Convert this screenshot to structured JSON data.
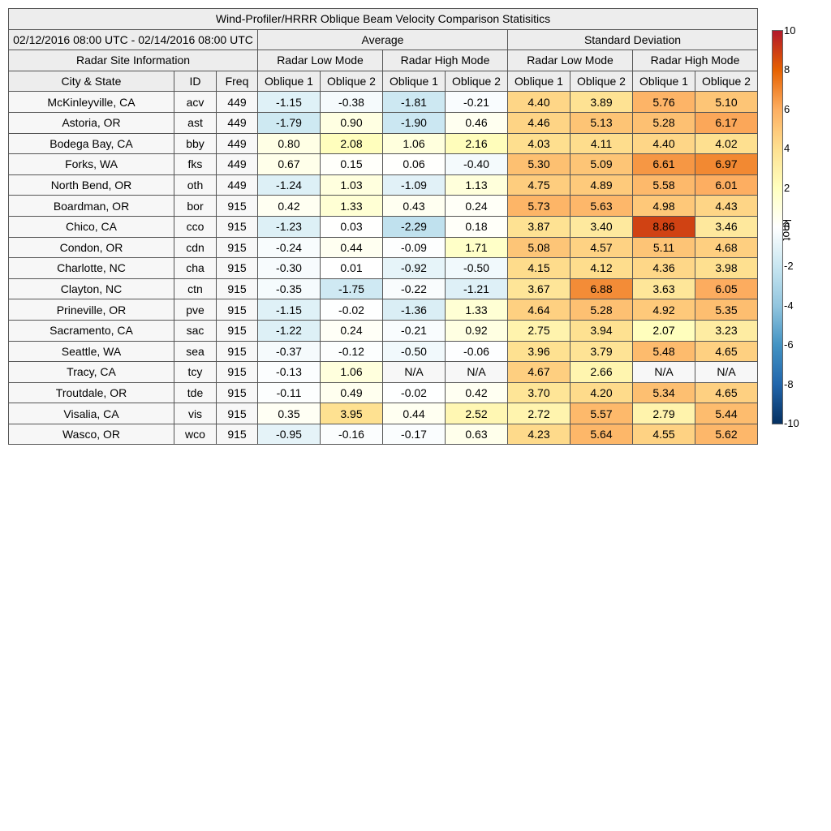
{
  "chart_data": {
    "type": "table",
    "title": "Wind-Profiler/HRRR Oblique Beam Velocity Comparison Statisitics",
    "period": "02/12/2016 08:00 UTC - 02/14/2016 08:00 UTC",
    "groups": [
      "Average",
      "Standard Deviation"
    ],
    "site_info_label": "Radar Site Information",
    "modes": [
      "Radar Low Mode",
      "Radar High Mode",
      "Radar Low Mode",
      "Radar High Mode"
    ],
    "info_columns": [
      "City & State",
      "ID",
      "Freq"
    ],
    "beam_columns": [
      "Oblique 1",
      "Oblique 2",
      "Oblique 1",
      "Oblique 2",
      "Oblique 1",
      "Oblique 2",
      "Oblique 1",
      "Oblique 2"
    ],
    "rows": [
      {
        "city": "McKinleyville, CA",
        "id": "acv",
        "freq": "449",
        "values": [
          "-1.15",
          "-0.38",
          "-1.81",
          "-0.21",
          "4.40",
          "3.89",
          "5.76",
          "5.10"
        ]
      },
      {
        "city": "Astoria, OR",
        "id": "ast",
        "freq": "449",
        "values": [
          "-1.79",
          "0.90",
          "-1.90",
          "0.46",
          "4.46",
          "5.13",
          "5.28",
          "6.17"
        ]
      },
      {
        "city": "Bodega Bay, CA",
        "id": "bby",
        "freq": "449",
        "values": [
          "0.80",
          "2.08",
          "1.06",
          "2.16",
          "4.03",
          "4.11",
          "4.40",
          "4.02"
        ]
      },
      {
        "city": "Forks, WA",
        "id": "fks",
        "freq": "449",
        "values": [
          "0.67",
          "0.15",
          "0.06",
          "-0.40",
          "5.30",
          "5.09",
          "6.61",
          "6.97"
        ]
      },
      {
        "city": "North Bend, OR",
        "id": "oth",
        "freq": "449",
        "values": [
          "-1.24",
          "1.03",
          "-1.09",
          "1.13",
          "4.75",
          "4.89",
          "5.58",
          "6.01"
        ]
      },
      {
        "city": "Boardman, OR",
        "id": "bor",
        "freq": "915",
        "values": [
          "0.42",
          "1.33",
          "0.43",
          "0.24",
          "5.73",
          "5.63",
          "4.98",
          "4.43"
        ]
      },
      {
        "city": "Chico, CA",
        "id": "cco",
        "freq": "915",
        "values": [
          "-1.23",
          "0.03",
          "-2.29",
          "0.18",
          "3.87",
          "3.40",
          "8.86",
          "3.46"
        ]
      },
      {
        "city": "Condon, OR",
        "id": "cdn",
        "freq": "915",
        "values": [
          "-0.24",
          "0.44",
          "-0.09",
          "1.71",
          "5.08",
          "4.57",
          "5.11",
          "4.68"
        ]
      },
      {
        "city": "Charlotte, NC",
        "id": "cha",
        "freq": "915",
        "values": [
          "-0.30",
          "0.01",
          "-0.92",
          "-0.50",
          "4.15",
          "4.12",
          "4.36",
          "3.98"
        ]
      },
      {
        "city": "Clayton, NC",
        "id": "ctn",
        "freq": "915",
        "values": [
          "-0.35",
          "-1.75",
          "-0.22",
          "-1.21",
          "3.67",
          "6.88",
          "3.63",
          "6.05"
        ]
      },
      {
        "city": "Prineville, OR",
        "id": "pve",
        "freq": "915",
        "values": [
          "-1.15",
          "-0.02",
          "-1.36",
          "1.33",
          "4.64",
          "5.28",
          "4.92",
          "5.35"
        ]
      },
      {
        "city": "Sacramento, CA",
        "id": "sac",
        "freq": "915",
        "values": [
          "-1.22",
          "0.24",
          "-0.21",
          "0.92",
          "2.75",
          "3.94",
          "2.07",
          "3.23"
        ]
      },
      {
        "city": "Seattle, WA",
        "id": "sea",
        "freq": "915",
        "values": [
          "-0.37",
          "-0.12",
          "-0.50",
          "-0.06",
          "3.96",
          "3.79",
          "5.48",
          "4.65"
        ]
      },
      {
        "city": "Tracy, CA",
        "id": "tcy",
        "freq": "915",
        "values": [
          "-0.13",
          "1.06",
          "N/A",
          "N/A",
          "4.67",
          "2.66",
          "N/A",
          "N/A"
        ]
      },
      {
        "city": "Troutdale, OR",
        "id": "tde",
        "freq": "915",
        "values": [
          "-0.11",
          "0.49",
          "-0.02",
          "0.42",
          "3.70",
          "4.20",
          "5.34",
          "4.65"
        ]
      },
      {
        "city": "Visalia, CA",
        "id": "vis",
        "freq": "915",
        "values": [
          "0.35",
          "3.95",
          "0.44",
          "2.52",
          "2.72",
          "5.57",
          "2.79",
          "5.44"
        ]
      },
      {
        "city": "Wasco, OR",
        "id": "wco",
        "freq": "915",
        "values": [
          "-0.95",
          "-0.16",
          "-0.17",
          "0.63",
          "4.23",
          "5.64",
          "4.55",
          "5.62"
        ]
      }
    ],
    "colorbar": {
      "label": "knot",
      "range": [
        -10,
        10
      ],
      "ticks": [
        "10",
        "8",
        "6",
        "4",
        "2",
        "0",
        "-2",
        "-4",
        "-6",
        "-8",
        "-10"
      ],
      "colors": [
        "#053061",
        "#2166ac",
        "#4393c3",
        "#92c5de",
        "#c8e6f1",
        "#ffffff",
        "#ffffbf",
        "#fee090",
        "#fdae61",
        "#e66101",
        "#b2182b"
      ]
    }
  }
}
